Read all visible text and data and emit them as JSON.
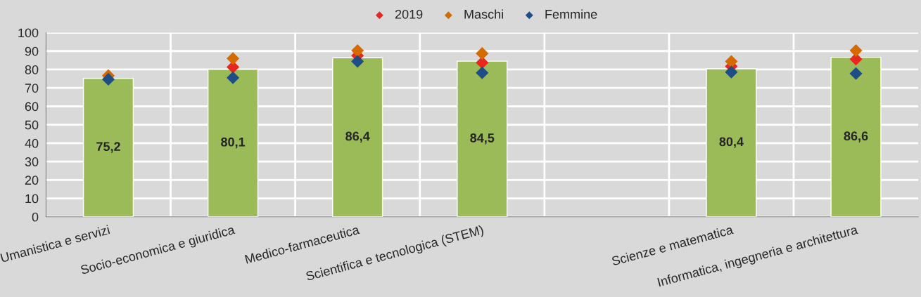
{
  "chart_data": {
    "type": "bar",
    "categories": [
      "Umanistica e servizi",
      "Socio-economica e giuridica",
      "Medico-farmaceutica",
      "Scientifica e tecnologica (STEM)",
      null,
      "Scienze e matematica",
      "Informatica, ingegneria e architettura"
    ],
    "series": [
      {
        "color": "#9bbb59",
        "values": [
          75.2,
          80.1,
          86.4,
          84.5,
          null,
          80.4,
          86.6
        ],
        "value_labels": [
          "75,2",
          "80,1",
          "86,4",
          "84,5",
          null,
          "80,4",
          "86,6"
        ]
      },
      {
        "type": "scatter",
        "name": "2019",
        "color": "#e8281e",
        "values": [
          null,
          81.3,
          87.5,
          83.7,
          null,
          81.7,
          85.6
        ]
      },
      {
        "type": "scatter",
        "name": "Maschi",
        "color": "#d46a00",
        "values": [
          76.7,
          86.0,
          90.3,
          88.7,
          null,
          84.4,
          90.3
        ]
      },
      {
        "type": "scatter",
        "name": "Femmine",
        "color": "#1f4e86",
        "values": [
          74.7,
          75.5,
          84.4,
          78.2,
          null,
          78.6,
          77.8
        ]
      }
    ],
    "ylim": [
      0,
      100
    ],
    "yticks": [
      0,
      10,
      20,
      30,
      40,
      50,
      60,
      70,
      80,
      90,
      100
    ],
    "grid": true,
    "legend": "top",
    "marker": "diamond"
  }
}
